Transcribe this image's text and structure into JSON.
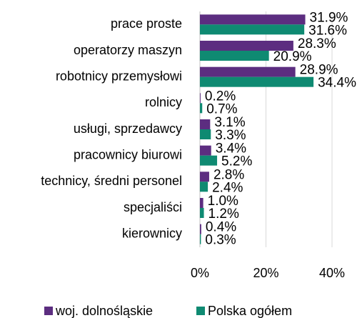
{
  "chart_data": {
    "type": "bar",
    "orientation": "horizontal",
    "categories": [
      "prace proste",
      "operatorzy maszyn",
      "robotnicy przemysłowi",
      "rolnicy",
      "usługi, sprzedawcy",
      "pracownicy biurowi",
      "technicy, średni personel",
      "specjaliści",
      "kierownicy"
    ],
    "series": [
      {
        "name": "woj. dolnośląskie",
        "color": "#5c2d80",
        "values": [
          31.9,
          28.3,
          28.9,
          0.2,
          3.1,
          3.4,
          2.8,
          1.0,
          0.4
        ],
        "value_labels": [
          "31.9%",
          "28.3%",
          "28.9%",
          "0.2%",
          "3.1%",
          "3.4%",
          "2.8%",
          "1.0%",
          "0.4%"
        ]
      },
      {
        "name": "Polska ogółem",
        "color": "#0f8a72",
        "values": [
          31.6,
          20.9,
          34.4,
          0.7,
          3.3,
          5.2,
          2.4,
          1.2,
          0.3
        ],
        "value_labels": [
          "31.6%",
          "20.9%",
          "34.4%",
          "0.7%",
          "3.3%",
          "5.2%",
          "2.4%",
          "1.2%",
          "0.3%"
        ]
      }
    ],
    "xlim": [
      0,
      40
    ],
    "xticks": [
      {
        "value": 0,
        "label": "0%"
      },
      {
        "value": 20,
        "label": "20%"
      },
      {
        "value": 40,
        "label": "40%"
      }
    ],
    "grid": true,
    "legend": "bottom"
  }
}
